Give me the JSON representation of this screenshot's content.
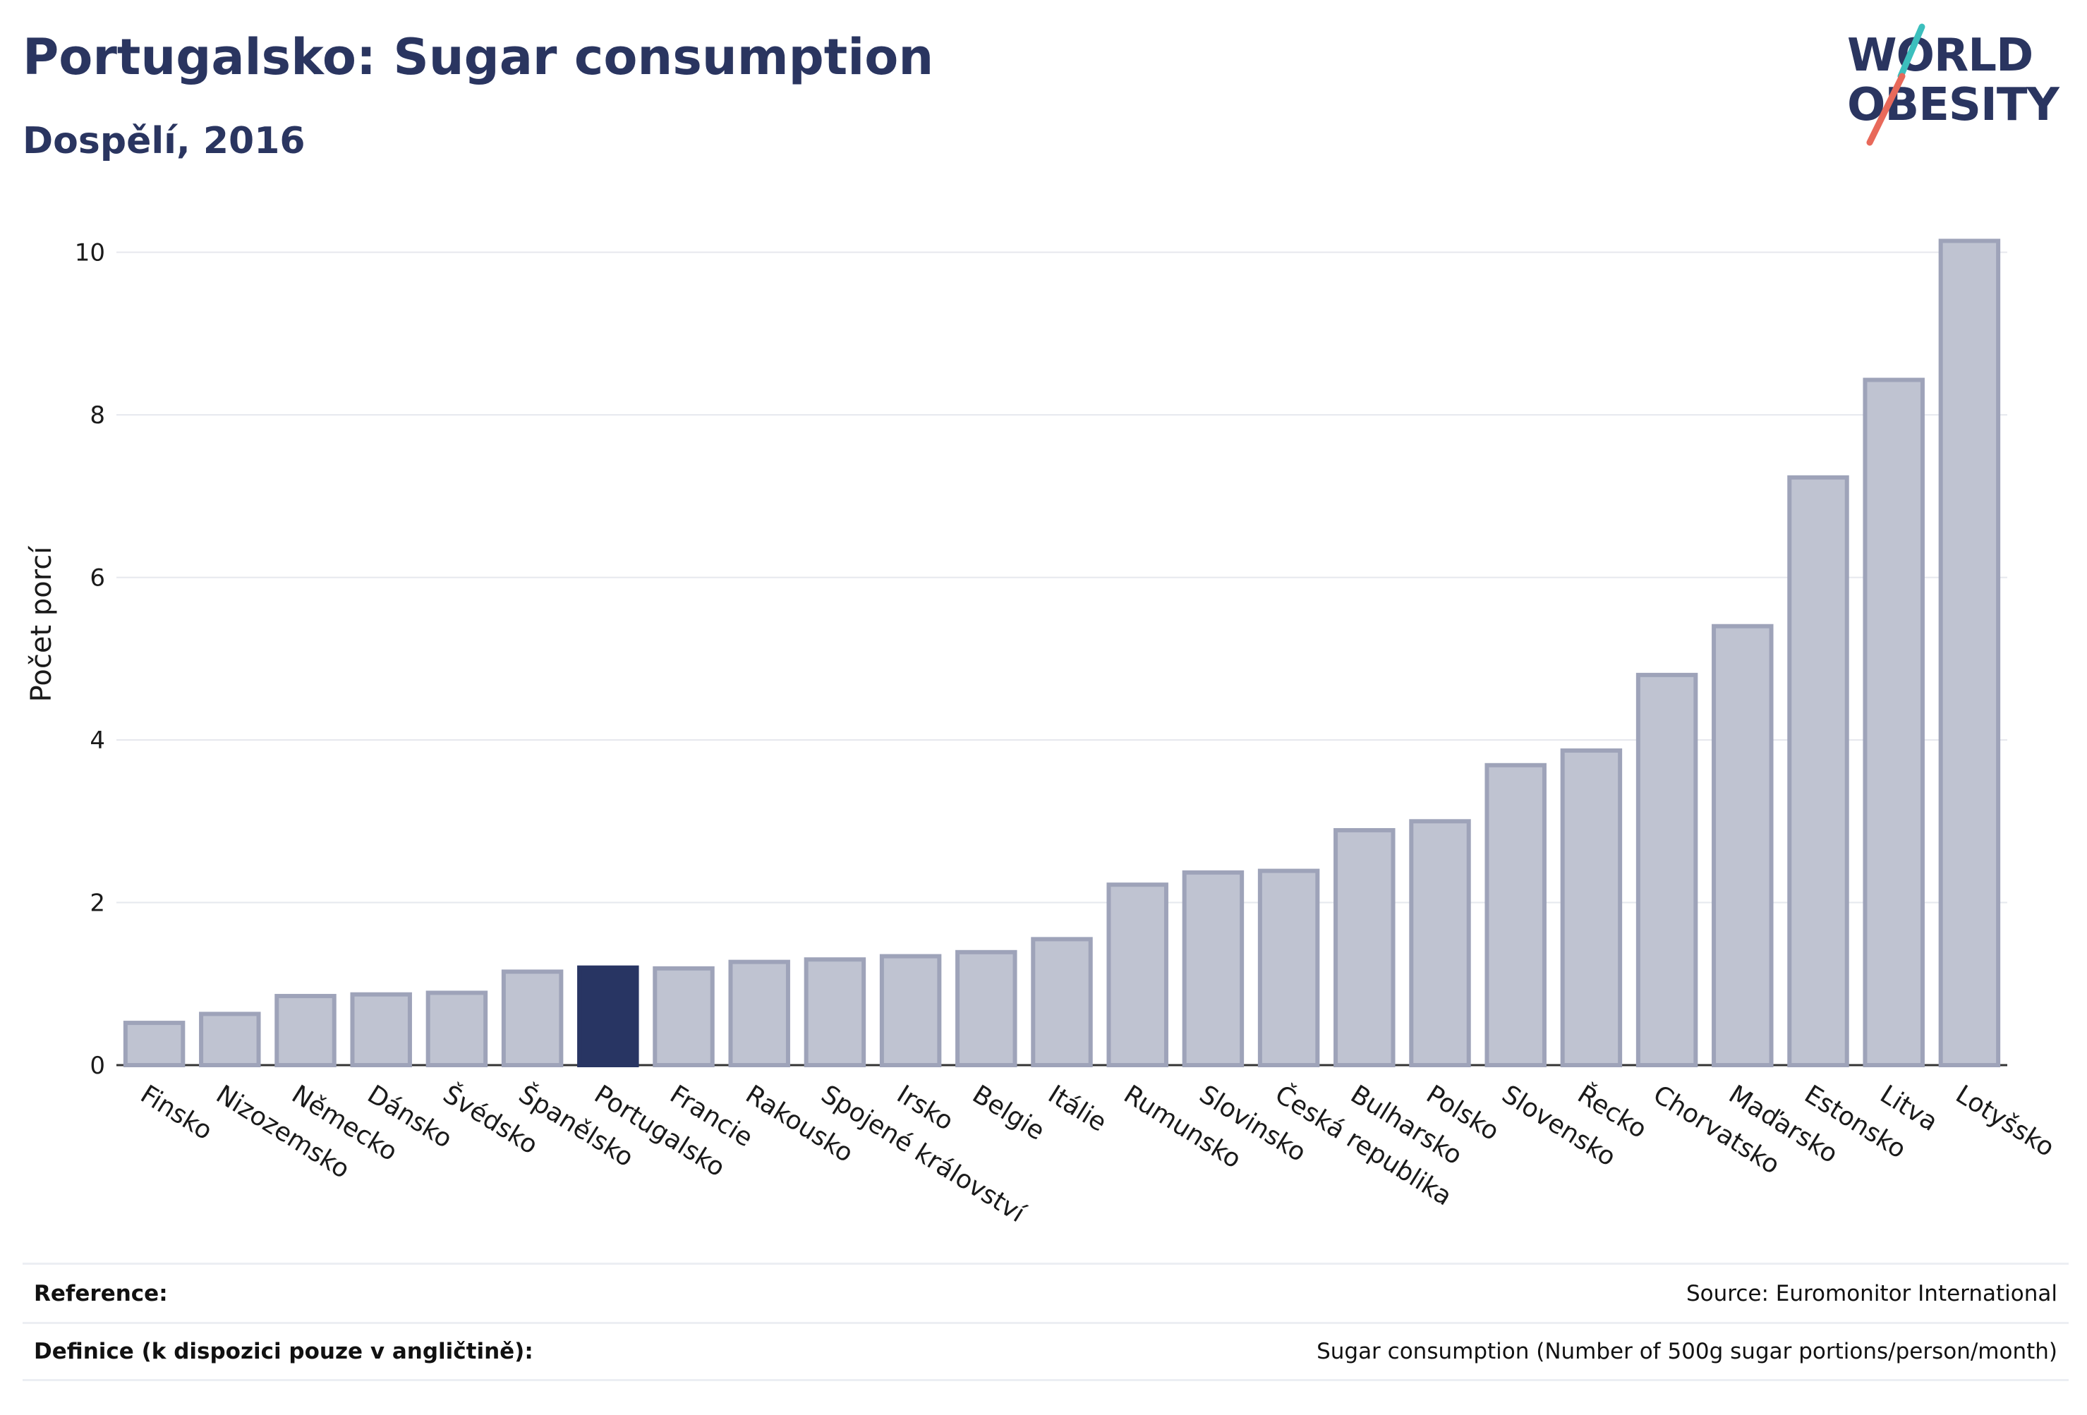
{
  "header": {
    "title": "Portugalsko: Sugar consumption",
    "subtitle": "Dospělí, 2016"
  },
  "logo": {
    "line1": "WORLD",
    "line2": "OBESITY",
    "accent_teal": "#3cbfbd",
    "accent_red": "#e8695a",
    "text_color": "#2a3560"
  },
  "chart_data": {
    "type": "bar",
    "ylabel": "Počet porcí",
    "xlabel": "",
    "ylim": [
      0,
      10.5
    ],
    "yticks": [
      0,
      2,
      4,
      6,
      8,
      10
    ],
    "grid": true,
    "highlight": "Portugalsko",
    "highlight_color": "#283563",
    "bar_color": "#bfc3d1",
    "bar_edge_color": "#9ea3b9",
    "categories": [
      "Finsko",
      "Nizozemsko",
      "Německo",
      "Dánsko",
      "Švédsko",
      "Španělsko",
      "Portugalsko",
      "Francie",
      "Rakousko",
      "Spojené království",
      "Irsko",
      "Belgie",
      "Itálie",
      "Rumunsko",
      "Slovinsko",
      "Česká republika",
      "Bulharsko",
      "Polsko",
      "Slovensko",
      "Řecko",
      "Chorvatsko",
      "Maďarsko",
      "Estonsko",
      "Litva",
      "Lotyšsko"
    ],
    "values": [
      0.52,
      0.63,
      0.85,
      0.87,
      0.89,
      1.15,
      1.2,
      1.19,
      1.27,
      1.3,
      1.34,
      1.39,
      1.55,
      2.22,
      2.37,
      2.39,
      2.89,
      3.0,
      3.69,
      3.87,
      4.8,
      5.4,
      7.23,
      8.43,
      10.14
    ]
  },
  "footer": {
    "reference_label": "Reference:",
    "reference_value": "Source: Euromonitor International",
    "definition_label": "Definice (k dispozici pouze v angličtině):",
    "definition_value": "Sugar consumption (Number of 500g sugar portions/person/month)"
  }
}
